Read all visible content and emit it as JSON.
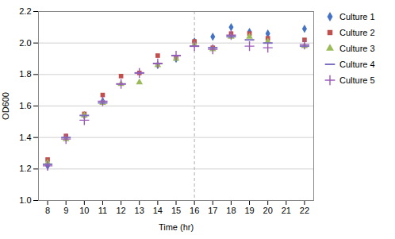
{
  "chart_data": {
    "type": "scatter",
    "xlabel": "Time (hr)",
    "ylabel": "OD600",
    "x": [
      8,
      9,
      10,
      11,
      12,
      13,
      14,
      15,
      16,
      17,
      18,
      19,
      20,
      21,
      22
    ],
    "series": [
      {
        "name": "Culture 1",
        "color": "#4472c4",
        "marker": "diamond",
        "values": [
          1.22,
          1.4,
          1.54,
          1.63,
          null,
          null,
          1.86,
          1.9,
          2.01,
          2.04,
          2.1,
          2.07,
          2.06,
          null,
          2.09
        ]
      },
      {
        "name": "Culture 2",
        "color": "#c0504d",
        "marker": "square",
        "values": [
          1.26,
          1.41,
          1.55,
          1.67,
          1.79,
          1.81,
          1.92,
          1.91,
          2.01,
          1.97,
          2.06,
          2.06,
          2.03,
          null,
          2.02
        ]
      },
      {
        "name": "Culture 3",
        "color": "#9bbb59",
        "marker": "triangle",
        "values": [
          1.24,
          1.39,
          1.54,
          1.62,
          1.74,
          1.75,
          1.86,
          1.9,
          1.99,
          1.96,
          2.04,
          2.04,
          2.01,
          null,
          1.98
        ]
      },
      {
        "name": "Culture 4",
        "color": "#7f6fbf",
        "marker": "hline",
        "values": [
          1.23,
          1.4,
          1.54,
          1.62,
          1.74,
          1.81,
          1.87,
          1.92,
          1.98,
          1.97,
          2.04,
          2.02,
          2.0,
          null,
          1.98
        ]
      },
      {
        "name": "Culture 5",
        "color": "#9b59b6",
        "marker": "plus",
        "values": [
          1.22,
          1.39,
          1.51,
          1.63,
          1.74,
          1.81,
          1.87,
          1.92,
          1.98,
          1.96,
          2.05,
          1.98,
          1.97,
          null,
          1.99
        ]
      }
    ],
    "xlim": [
      7.5,
      22.5
    ],
    "xticks": [
      8,
      9,
      10,
      11,
      12,
      13,
      14,
      15,
      16,
      17,
      18,
      19,
      20,
      21,
      22
    ],
    "ylim": [
      1.0,
      2.2
    ],
    "yticks": [
      {
        "value": 1.0,
        "label": "1.0"
      },
      1.2,
      1.4,
      1.6,
      1.8,
      {
        "value": 2.0,
        "label": "2.0"
      },
      2.2
    ],
    "vline": 16,
    "grid": true,
    "legend": "right"
  }
}
